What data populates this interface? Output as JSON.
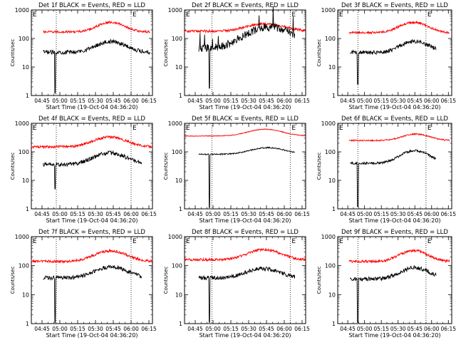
{
  "chart_data": [
    {
      "type": "line",
      "title": "Det 1f BLACK = Events, RED = LLD",
      "xlabel": "Start Time (19-Oct-04 04:36:20)",
      "ylabel": "Counts/sec",
      "x_ticks": [
        "04:45",
        "05:00",
        "05:15",
        "05:30",
        "05:45",
        "06:00",
        "06:15"
      ],
      "y_ticks": [
        "1",
        "10",
        "100",
        "1000"
      ],
      "y_scale": "log",
      "ylim": [
        1,
        1000
      ],
      "xlim": [
        "04:36",
        "06:18"
      ],
      "markers": [
        "E",
        "E"
      ],
      "vlines": [
        "04:57",
        "06:00"
      ],
      "series": [
        {
          "name": "LLD",
          "color": "#ff0000",
          "profile": "smooth",
          "start_min": 10,
          "end_min": 100,
          "base": 170,
          "peak": 370,
          "peak_min": 67,
          "peak_width": 10,
          "noise": 0.09
        },
        {
          "name": "Events",
          "color": "#000000",
          "profile": "smooth",
          "start_min": 10,
          "end_min": 100,
          "base": 33,
          "peak": 78,
          "peak_min": 67,
          "peak_width": 11,
          "noise": 0.16,
          "dip_min": 20,
          "dip_val": 1.2
        }
      ]
    },
    {
      "type": "line",
      "title": "Det 2f BLACK = Events, RED = LLD",
      "xlabel": "Start Time (19-Oct-04 04:36:20)",
      "ylabel": "Counts/sec",
      "x_ticks": [
        "04:45",
        "05:00",
        "05:15",
        "05:30",
        "05:45",
        "06:00",
        "06:15"
      ],
      "y_ticks": [
        "1",
        "10",
        "100",
        "1000"
      ],
      "y_scale": "log",
      "ylim": [
        1,
        1000
      ],
      "xlim": [
        "04:36",
        "06:18"
      ],
      "markers": [
        "E",
        "E"
      ],
      "vlines": [
        "04:59",
        "06:05"
      ],
      "series": [
        {
          "name": "LLD",
          "color": "#ff0000",
          "profile": "smooth",
          "start_min": 0,
          "end_min": 102,
          "base": 180,
          "peak": 330,
          "peak_min": 68,
          "peak_width": 14,
          "noise": 0.1
        },
        {
          "name": "Events",
          "color": "#000000",
          "profile": "spiky",
          "start_min": 12,
          "end_min": 93,
          "base": 45,
          "peak": 250,
          "peak_min": 72,
          "peak_width": 16,
          "noise": 0.3,
          "dip_min": 21,
          "dip_val": 1.8
        }
      ]
    },
    {
      "type": "line",
      "title": "Det 3f BLACK = Events, RED = LLD",
      "xlabel": "Start Time (19-Oct-04 04:36:20)",
      "ylabel": "Counts/sec",
      "x_ticks": [
        "04:45",
        "05:00",
        "05:15",
        "05:30",
        "05:45",
        "06:00",
        "06:15"
      ],
      "y_ticks": [
        "1",
        "10",
        "100",
        "1000"
      ],
      "y_scale": "log",
      "ylim": [
        1,
        1000
      ],
      "xlim": [
        "04:36",
        "06:18"
      ],
      "markers": [
        "E",
        "E"
      ],
      "vlines": [
        "04:54",
        "05:55"
      ],
      "series": [
        {
          "name": "LLD",
          "color": "#ff0000",
          "profile": "smooth",
          "start_min": 10,
          "end_min": 100,
          "base": 160,
          "peak": 370,
          "peak_min": 68,
          "peak_width": 11,
          "noise": 0.09
        },
        {
          "name": "Events",
          "color": "#000000",
          "profile": "smooth",
          "start_min": 11,
          "end_min": 88,
          "base": 32,
          "peak": 80,
          "peak_min": 69,
          "peak_width": 11,
          "noise": 0.16,
          "dip_min": 18,
          "dip_val": 2.5
        }
      ]
    },
    {
      "type": "line",
      "title": "Det 4f BLACK = Events, RED = LLD",
      "xlabel": "Start Time (19-Oct-04 04:36:20)",
      "ylabel": "Counts/sec",
      "x_ticks": [
        "04:45",
        "05:00",
        "05:15",
        "05:30",
        "05:45",
        "06:00",
        "06:15"
      ],
      "y_ticks": [
        "1",
        "10",
        "100",
        "1000"
      ],
      "y_scale": "log",
      "ylim": [
        1,
        1000
      ],
      "xlim": [
        "04:36",
        "06:18"
      ],
      "markers": [
        "E",
        "E"
      ],
      "vlines": [
        "04:57",
        "06:00"
      ],
      "series": [
        {
          "name": "LLD",
          "color": "#ff0000",
          "profile": "smooth",
          "start_min": 0,
          "end_min": 102,
          "base": 150,
          "peak": 330,
          "peak_min": 66,
          "peak_width": 12,
          "noise": 0.1
        },
        {
          "name": "Events",
          "color": "#000000",
          "profile": "smooth",
          "start_min": 10,
          "end_min": 93,
          "base": 36,
          "peak": 90,
          "peak_min": 66,
          "peak_width": 12,
          "noise": 0.16,
          "dip_min": 20,
          "dip_val": 5
        }
      ]
    },
    {
      "type": "line",
      "title": "Det 5f BLACK = Events, RED = LLD",
      "xlabel": "Start Time (19-Oct-04 04:36:20)",
      "ylabel": "Counts/sec",
      "x_ticks": [
        "04:45",
        "05:00",
        "05:15",
        "05:30",
        "05:45",
        "06:00",
        "06:15"
      ],
      "y_ticks": [
        "1",
        "10",
        "100",
        "1000"
      ],
      "y_scale": "log",
      "ylim": [
        1,
        1000
      ],
      "xlim": [
        "04:36",
        "06:18"
      ],
      "markers": [
        "E",
        "E"
      ],
      "vlines": [
        "04:59",
        "06:05"
      ],
      "series": [
        {
          "name": "LLD",
          "color": "#ff0000",
          "profile": "smooth",
          "start_min": 0,
          "end_min": 102,
          "base": 360,
          "peak": 620,
          "peak_min": 68,
          "peak_width": 13,
          "noise": 0.03
        },
        {
          "name": "Events",
          "color": "#000000",
          "profile": "smooth",
          "start_min": 12,
          "end_min": 93,
          "base": 82,
          "peak": 140,
          "peak_min": 70,
          "peak_width": 13,
          "noise": 0.05,
          "dip_min": 21,
          "dip_val": 1.1
        }
      ]
    },
    {
      "type": "line",
      "title": "Det 6f BLACK = Events, RED = LLD",
      "xlabel": "Start Time (19-Oct-04 04:36:20)",
      "ylabel": "Counts/sec",
      "x_ticks": [
        "04:45",
        "05:00",
        "05:15",
        "05:30",
        "05:45",
        "06:00",
        "06:15"
      ],
      "y_ticks": [
        "1",
        "10",
        "100",
        "1000"
      ],
      "y_scale": "log",
      "ylim": [
        1,
        1000
      ],
      "xlim": [
        "04:36",
        "06:18"
      ],
      "markers": [
        "E",
        "E"
      ],
      "vlines": [
        "04:54",
        "05:55"
      ],
      "series": [
        {
          "name": "LLD",
          "color": "#ff0000",
          "profile": "smooth",
          "start_min": 10,
          "end_min": 100,
          "base": 250,
          "peak": 420,
          "peak_min": 70,
          "peak_width": 11,
          "noise": 0.05
        },
        {
          "name": "Events",
          "color": "#000000",
          "profile": "smooth",
          "start_min": 11,
          "end_min": 88,
          "base": 40,
          "peak": 110,
          "peak_min": 69,
          "peak_width": 11,
          "noise": 0.09,
          "dip_min": 18,
          "dip_val": 1.2
        }
      ]
    },
    {
      "type": "line",
      "title": "Det 7f BLACK = Events, RED = LLD",
      "xlabel": "Start Time (19-Oct-04 04:36:20)",
      "ylabel": "Counts/sec",
      "x_ticks": [
        "04:45",
        "05:00",
        "05:15",
        "05:30",
        "05:45",
        "06:00",
        "06:15"
      ],
      "y_ticks": [
        "1",
        "10",
        "100",
        "1000"
      ],
      "y_scale": "log",
      "ylim": [
        1,
        1000
      ],
      "xlim": [
        "04:36",
        "06:18"
      ],
      "markers": [
        "E",
        "E"
      ],
      "vlines": [
        "04:57",
        "06:00"
      ],
      "series": [
        {
          "name": "LLD",
          "color": "#ff0000",
          "profile": "smooth",
          "start_min": 0,
          "end_min": 102,
          "base": 140,
          "peak": 320,
          "peak_min": 67,
          "peak_width": 12,
          "noise": 0.1
        },
        {
          "name": "Events",
          "color": "#000000",
          "profile": "smooth",
          "start_min": 10,
          "end_min": 93,
          "base": 38,
          "peak": 90,
          "peak_min": 67,
          "peak_width": 12,
          "noise": 0.15,
          "dip_min": 20,
          "dip_val": 1.1
        }
      ]
    },
    {
      "type": "line",
      "title": "Det 8f BLACK = Events, RED = LLD",
      "xlabel": "Start Time (19-Oct-04 04:36:20)",
      "ylabel": "Counts/sec",
      "x_ticks": [
        "04:45",
        "05:00",
        "05:15",
        "05:30",
        "05:45",
        "06:00",
        "06:15"
      ],
      "y_ticks": [
        "1",
        "10",
        "100",
        "1000"
      ],
      "y_scale": "log",
      "ylim": [
        1,
        1000
      ],
      "xlim": [
        "04:36",
        "06:18"
      ],
      "markers": [
        "E",
        "E"
      ],
      "vlines": [
        "04:59",
        "06:05"
      ],
      "series": [
        {
          "name": "LLD",
          "color": "#ff0000",
          "profile": "smooth",
          "start_min": 0,
          "end_min": 102,
          "base": 160,
          "peak": 360,
          "peak_min": 67,
          "peak_width": 12,
          "noise": 0.1
        },
        {
          "name": "Events",
          "color": "#000000",
          "profile": "smooth",
          "start_min": 12,
          "end_min": 93,
          "base": 38,
          "peak": 80,
          "peak_min": 66,
          "peak_width": 12,
          "noise": 0.15,
          "dip_min": 21,
          "dip_val": 1.1
        }
      ]
    },
    {
      "type": "line",
      "title": "Det 9f BLACK = Events, RED = LLD",
      "xlabel": "Start Time (19-Oct-04 04:36:20)",
      "ylabel": "Counts/sec",
      "x_ticks": [
        "04:45",
        "05:00",
        "05:15",
        "05:30",
        "05:45",
        "06:00",
        "06:15"
      ],
      "y_ticks": [
        "1",
        "10",
        "100",
        "1000"
      ],
      "y_scale": "log",
      "ylim": [
        1,
        1000
      ],
      "xlim": [
        "04:36",
        "06:18"
      ],
      "markers": [
        "E",
        "E"
      ],
      "vlines": [
        "04:54",
        "05:55"
      ],
      "series": [
        {
          "name": "LLD",
          "color": "#ff0000",
          "profile": "smooth",
          "start_min": 10,
          "end_min": 100,
          "base": 140,
          "peak": 330,
          "peak_min": 68,
          "peak_width": 11,
          "noise": 0.1
        },
        {
          "name": "Events",
          "color": "#000000",
          "profile": "smooth",
          "start_min": 11,
          "end_min": 88,
          "base": 35,
          "peak": 85,
          "peak_min": 69,
          "peak_width": 11,
          "noise": 0.15,
          "dip_min": 18,
          "dip_val": 1.1
        }
      ]
    }
  ]
}
